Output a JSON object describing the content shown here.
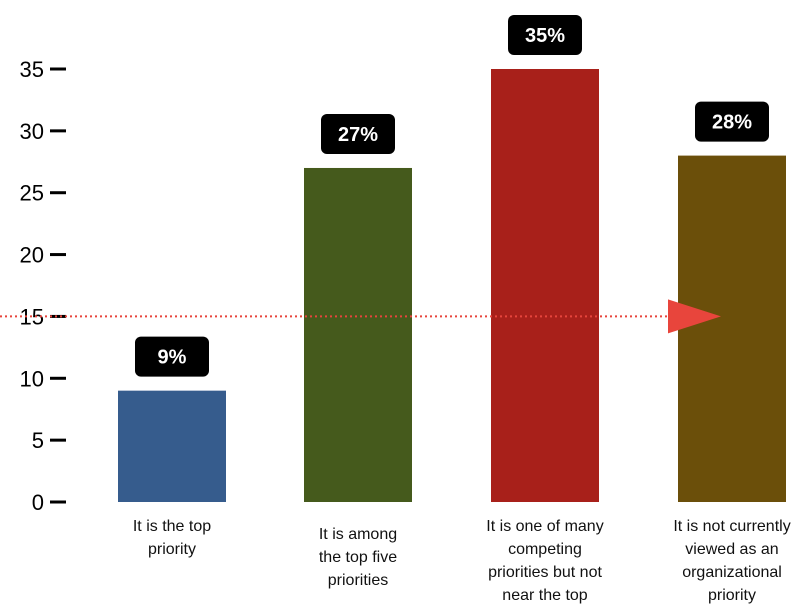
{
  "chart_data": {
    "type": "bar",
    "title": "",
    "xlabel": "",
    "ylabel": "",
    "ylim": [
      0,
      35
    ],
    "yticks": [
      0,
      5,
      10,
      15,
      20,
      25,
      30,
      35
    ],
    "grid": false,
    "categories": [
      [
        "It is the top",
        "priority"
      ],
      [
        "It is among",
        "the top five",
        "priorities"
      ],
      [
        "It is one of many",
        "competing",
        "priorities but not",
        "near the top"
      ],
      [
        "It is not currently",
        "viewed as an",
        "organizational",
        "priority"
      ]
    ],
    "values": [
      9,
      27,
      35,
      28
    ],
    "data_labels": [
      "9%",
      "27%",
      "35%",
      "28%"
    ],
    "colors": [
      "#365c8d",
      "#455a1c",
      "#a8201a",
      "#6b4f0a"
    ],
    "reference_line": {
      "y": 15,
      "color": "#e8453c",
      "style": "dotted",
      "marker": "arrow"
    }
  }
}
